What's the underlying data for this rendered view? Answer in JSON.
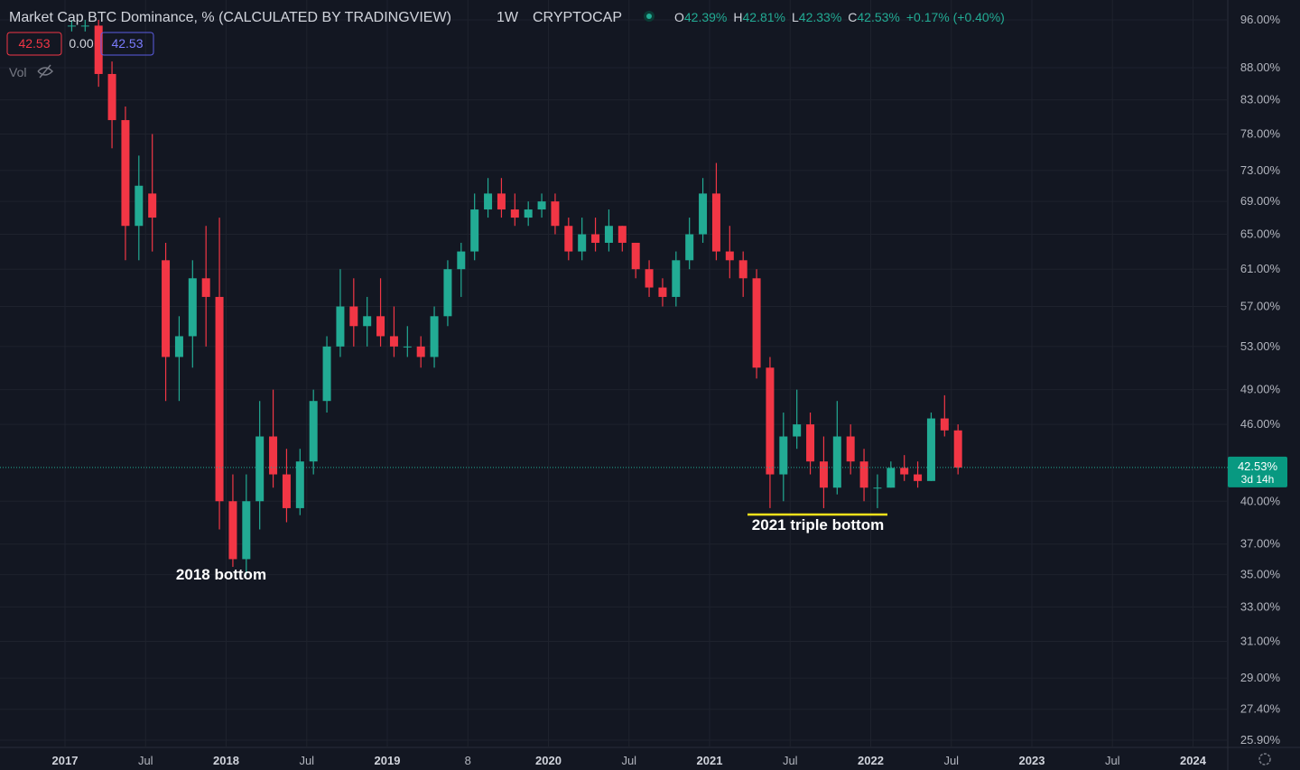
{
  "chart_data": {
    "type": "candlestick",
    "title": "Market Cap BTC Dominance, % (CALCULATED BY TRADINGVIEW)",
    "interval": "1W",
    "exchange": "CRYPTOCAP",
    "header": [
      {
        "label": "O",
        "value": "42.39%"
      },
      {
        "label": "H",
        "value": "42.81%"
      },
      {
        "label": "L",
        "value": "42.33%"
      },
      {
        "label": "C",
        "value": "42.53%"
      },
      {
        "label": "",
        "value": "+0.17% (+0.40%)"
      }
    ],
    "badges": [
      "42.53",
      "0.00",
      "42.53"
    ],
    "vol_label": "Vol",
    "log_scale": true,
    "grid": true,
    "up_color": "#22ab94",
    "down_color": "#f23645",
    "ylim": [
      25.9,
      96
    ],
    "yticks": [
      {
        "value": 96,
        "label": "96.00%"
      },
      {
        "value": 88,
        "label": "88.00%"
      },
      {
        "value": 83,
        "label": "83.00%"
      },
      {
        "value": 78,
        "label": "78.00%"
      },
      {
        "value": 73,
        "label": "73.00%"
      },
      {
        "value": 69,
        "label": "69.00%"
      },
      {
        "value": 65,
        "label": "65.00%"
      },
      {
        "value": 61,
        "label": "61.00%"
      },
      {
        "value": 57,
        "label": "57.00%"
      },
      {
        "value": 53,
        "label": "53.00%"
      },
      {
        "value": 49,
        "label": "49.00%"
      },
      {
        "value": 46,
        "label": "46.00%"
      },
      {
        "value": 40,
        "label": "40.00%"
      },
      {
        "value": 37,
        "label": "37.00%"
      },
      {
        "value": 35,
        "label": "35.00%"
      },
      {
        "value": 33,
        "label": "33.00%"
      },
      {
        "value": 31,
        "label": "31.00%"
      },
      {
        "value": 29,
        "label": "29.00%"
      },
      {
        "value": 27.4,
        "label": "27.40%"
      },
      {
        "value": 25.9,
        "label": "25.90%"
      }
    ],
    "xticks": [
      {
        "value": "2017-01",
        "label": "2017"
      },
      {
        "value": "2017-07",
        "label": "Jul"
      },
      {
        "value": "2018-01",
        "label": "2018"
      },
      {
        "value": "2018-07",
        "label": "Jul"
      },
      {
        "value": "2019-01",
        "label": "2019"
      },
      {
        "value": "2019-07",
        "label": "8"
      },
      {
        "value": "2020-01",
        "label": "2020"
      },
      {
        "value": "2020-07",
        "label": "Jul"
      },
      {
        "value": "2021-01",
        "label": "2021"
      },
      {
        "value": "2021-07",
        "label": "Jul"
      },
      {
        "value": "2022-01",
        "label": "2022"
      },
      {
        "value": "2022-07",
        "label": "Jul"
      },
      {
        "value": "2023-01",
        "label": "2023"
      },
      {
        "value": "2023-07",
        "label": "Jul"
      },
      {
        "value": "2024-01",
        "label": "2024"
      }
    ],
    "last_price": {
      "value": 42.53,
      "label": "42.53%"
    },
    "countdown": "3d 14h",
    "annotations": [
      "2018 bottom",
      "2021 triple bottom"
    ],
    "x": [
      "2017-01",
      "2017-02",
      "2017-03",
      "2017-04",
      "2017-05",
      "2017-06",
      "2017-07",
      "2017-08",
      "2017-09",
      "2017-10",
      "2017-11",
      "2017-12",
      "2018-01",
      "2018-02",
      "2018-03",
      "2018-04",
      "2018-05",
      "2018-06",
      "2018-07",
      "2018-08",
      "2018-09",
      "2018-10",
      "2018-11",
      "2018-12",
      "2019-01",
      "2019-02",
      "2019-03",
      "2019-04",
      "2019-05",
      "2019-06",
      "2019-07",
      "2019-08",
      "2019-09",
      "2019-10",
      "2019-11",
      "2019-12",
      "2020-01",
      "2020-02",
      "2020-03",
      "2020-04",
      "2020-05",
      "2020-06",
      "2020-07",
      "2020-08",
      "2020-09",
      "2020-10",
      "2020-11",
      "2020-12",
      "2021-01",
      "2021-02",
      "2021-03",
      "2021-04",
      "2021-05",
      "2021-06",
      "2021-07",
      "2021-08",
      "2021-09",
      "2021-10",
      "2021-11",
      "2021-12",
      "2022-01",
      "2022-02",
      "2022-03",
      "2022-04",
      "2022-05",
      "2022-06",
      "2022-07"
    ],
    "open": [
      95,
      95,
      95,
      87,
      80,
      66,
      70,
      62,
      52,
      54,
      60,
      58,
      40,
      36,
      40,
      45,
      42,
      39.5,
      43,
      48,
      53,
      57,
      55,
      56,
      54,
      53,
      53,
      52,
      56,
      61,
      63,
      68,
      70,
      68,
      67,
      68,
      69,
      66,
      63,
      65,
      64,
      66,
      64,
      61,
      59,
      58,
      62,
      65,
      70,
      63,
      62,
      60,
      51,
      42,
      45,
      46,
      43,
      41,
      45,
      43,
      41,
      41,
      42.5,
      42,
      41.5,
      46.5,
      45.5
    ],
    "high": [
      96,
      96,
      96,
      89,
      82,
      75,
      78,
      64,
      56,
      62,
      66,
      67,
      42,
      42,
      48,
      49,
      44,
      44,
      49,
      54,
      61,
      60,
      58,
      60,
      57,
      55,
      54,
      57,
      62,
      64,
      70,
      72,
      72,
      70,
      69,
      70,
      70,
      67,
      67,
      67,
      68,
      66,
      64,
      62,
      60,
      63,
      67,
      72,
      74,
      66,
      63,
      61,
      52,
      47,
      49,
      47,
      45,
      48,
      46,
      44,
      42,
      43,
      43.5,
      43,
      47,
      48.5,
      46
    ],
    "low": [
      94,
      94,
      85,
      76,
      62,
      62,
      63,
      48,
      48,
      51,
      53,
      38,
      35.5,
      35,
      38,
      41,
      38.5,
      39,
      42,
      47,
      52,
      53,
      53,
      53,
      52,
      52,
      51,
      51,
      55,
      58,
      62,
      67,
      67,
      66,
      66,
      67,
      65,
      62,
      62,
      63,
      63,
      63,
      60,
      58,
      57,
      57,
      61,
      64,
      62,
      60,
      58,
      50,
      39.5,
      40,
      44,
      42,
      39.5,
      40.5,
      42,
      40,
      39.5,
      41,
      41.5,
      41,
      41.5,
      45,
      42
    ],
    "close": [
      95,
      95,
      87,
      80,
      66,
      71,
      67,
      52,
      54,
      60,
      58,
      40,
      36,
      40,
      45,
      42,
      39.5,
      43,
      48,
      53,
      57,
      55,
      56,
      54,
      53,
      53,
      52,
      56,
      61,
      63,
      68,
      70,
      68,
      67,
      68,
      69,
      66,
      63,
      65,
      64,
      66,
      64,
      61,
      59,
      58,
      62,
      65,
      70,
      63,
      62,
      60,
      51,
      42,
      45,
      46,
      43,
      41,
      45,
      43,
      41,
      41,
      42.5,
      42,
      41.5,
      46.5,
      45.5,
      42.53
    ]
  }
}
